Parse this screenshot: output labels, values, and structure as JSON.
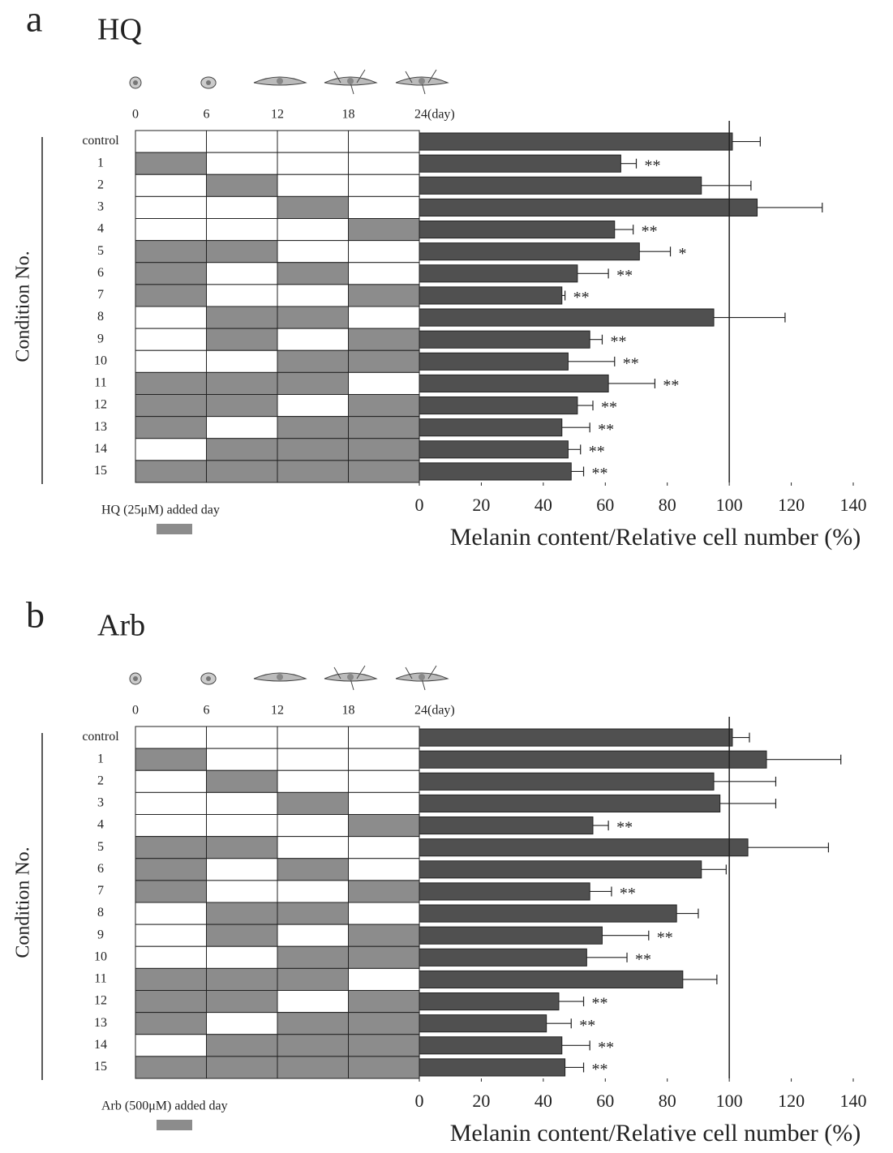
{
  "chart_data": [
    {
      "type": "bar",
      "orientation": "horizontal",
      "panel_label": "a",
      "title": "HQ",
      "categories": [
        "control",
        "1",
        "2",
        "3",
        "4",
        "5",
        "6",
        "7",
        "8",
        "9",
        "10",
        "11",
        "12",
        "13",
        "14",
        "15"
      ],
      "values": [
        101,
        65,
        91,
        109,
        63,
        71,
        51,
        46,
        95,
        55,
        48,
        61,
        51,
        46,
        48,
        49
      ],
      "errors": [
        9,
        5,
        16,
        21,
        6,
        10,
        10,
        1,
        23,
        4,
        15,
        15,
        5,
        9,
        4,
        4
      ],
      "annotations": [
        null,
        "**",
        null,
        null,
        "**",
        "*",
        "**",
        "**",
        null,
        "**",
        "**",
        "**",
        "**",
        "**",
        "**",
        "**"
      ],
      "color": "#505050",
      "xlim": [
        0,
        140
      ],
      "xticks": [
        0,
        20,
        40,
        60,
        80,
        100,
        120,
        140
      ],
      "xlabel": "Melanin content/Relative cell number (%)",
      "ylabel": "Condition No.",
      "reference_line": 100,
      "daylim": [
        0,
        24
      ],
      "day_ticks": [
        0,
        6,
        12,
        18,
        {
          "value": 24,
          "label": "24(day)"
        }
      ],
      "schedule": [
        [
          0,
          0,
          0,
          0
        ],
        [
          1,
          0,
          0,
          0
        ],
        [
          0,
          1,
          0,
          0
        ],
        [
          0,
          0,
          1,
          0
        ],
        [
          0,
          0,
          0,
          1
        ],
        [
          1,
          1,
          0,
          0
        ],
        [
          1,
          0,
          1,
          0
        ],
        [
          1,
          0,
          0,
          1
        ],
        [
          0,
          1,
          1,
          0
        ],
        [
          0,
          1,
          0,
          1
        ],
        [
          0,
          0,
          1,
          1
        ],
        [
          1,
          1,
          1,
          0
        ],
        [
          1,
          1,
          0,
          1
        ],
        [
          1,
          0,
          1,
          1
        ],
        [
          0,
          1,
          1,
          1
        ],
        [
          1,
          1,
          1,
          1
        ]
      ],
      "schedule_color": "#8c8c8c",
      "legend_label": "HQ (25μM) added day"
    },
    {
      "type": "bar",
      "orientation": "horizontal",
      "panel_label": "b",
      "title": "Arb",
      "categories": [
        "control",
        "1",
        "2",
        "3",
        "4",
        "5",
        "6",
        "7",
        "8",
        "9",
        "10",
        "11",
        "12",
        "13",
        "14",
        "15"
      ],
      "values": [
        101,
        112,
        95,
        97,
        56,
        106,
        91,
        55,
        83,
        59,
        54,
        85,
        45,
        41,
        46,
        47
      ],
      "errors": [
        5.5,
        24,
        20,
        18,
        5,
        26,
        8,
        7,
        7,
        15,
        13,
        11,
        8,
        8,
        9,
        6
      ],
      "annotations": [
        null,
        null,
        null,
        null,
        "**",
        null,
        null,
        "**",
        null,
        "**",
        "**",
        null,
        "**",
        "**",
        "**",
        "**"
      ],
      "color": "#505050",
      "xlim": [
        0,
        140
      ],
      "xticks": [
        0,
        20,
        40,
        60,
        80,
        100,
        120,
        140
      ],
      "xlabel": "Melanin content/Relative cell number (%)",
      "ylabel": "Condition No.",
      "reference_line": 100,
      "daylim": [
        0,
        24
      ],
      "day_ticks": [
        0,
        6,
        12,
        18,
        {
          "value": 24,
          "label": "24(day)"
        }
      ],
      "schedule": [
        [
          0,
          0,
          0,
          0
        ],
        [
          1,
          0,
          0,
          0
        ],
        [
          0,
          1,
          0,
          0
        ],
        [
          0,
          0,
          1,
          0
        ],
        [
          0,
          0,
          0,
          1
        ],
        [
          1,
          1,
          0,
          0
        ],
        [
          1,
          0,
          1,
          0
        ],
        [
          1,
          0,
          0,
          1
        ],
        [
          0,
          1,
          1,
          0
        ],
        [
          0,
          1,
          0,
          1
        ],
        [
          0,
          0,
          1,
          1
        ],
        [
          1,
          1,
          1,
          0
        ],
        [
          1,
          1,
          0,
          1
        ],
        [
          1,
          0,
          1,
          1
        ],
        [
          0,
          1,
          1,
          1
        ],
        [
          1,
          1,
          1,
          1
        ]
      ],
      "schedule_color": "#8c8c8c",
      "legend_label": "Arb (500μM) added day"
    }
  ]
}
